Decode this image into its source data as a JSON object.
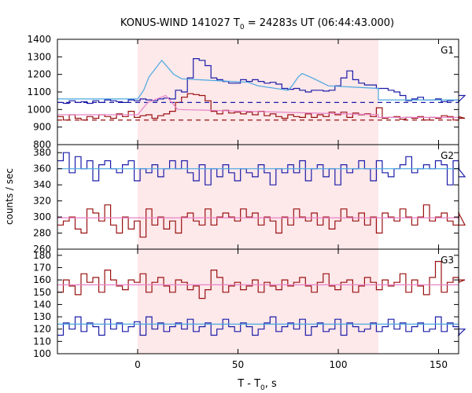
{
  "title_prefix": "KONUS-WIND 141027 T",
  "title_sub": "0",
  "title_suffix": " = 24283s UT (06:44:43.000)",
  "ylabel": "counts / sec",
  "xlabel_prefix": "T - T",
  "xlabel_sub": "0",
  "xlabel_suffix": ", s",
  "chart_data": {
    "type": "line",
    "x_range": [
      -40,
      160
    ],
    "x_ticks": [
      0,
      50,
      100,
      150
    ],
    "shaded_interval": [
      0,
      120
    ],
    "step_width": 2.944,
    "colors": {
      "series_a": "#1c1ca8",
      "series_b": "#9a1010",
      "fit_a": "#4aa8e0",
      "fit_b": "#e882c8",
      "shade": "#fde8ea"
    },
    "panels": [
      {
        "label": "G1",
        "ylim": [
          800,
          1400
        ],
        "y_ticks": [
          800,
          900,
          1000,
          1100,
          1200,
          1300,
          1400
        ],
        "series": [
          {
            "color": "#1c1ca8",
            "x0": -40,
            "values": [
              1040,
              1035,
              1050,
              1040,
              1045,
              1035,
              1050,
              1040,
              1055,
              1050,
              1045,
              1040,
              1055,
              1050,
              1060,
              1055,
              1050,
              1060,
              1065,
              1060,
              1110,
              1100,
              1180,
              1290,
              1280,
              1250,
              1180,
              1170,
              1160,
              1150,
              1150,
              1170,
              1160,
              1170,
              1160,
              1150,
              1155,
              1145,
              1120,
              1115,
              1120,
              1110,
              1100,
              1110,
              1110,
              1105,
              1110,
              1135,
              1180,
              1220,
              1170,
              1150,
              1140,
              1140,
              1120,
              1120,
              1110,
              1100,
              1080,
              1050,
              1060,
              1070,
              1055,
              1055,
              1060,
              1045,
              1050,
              1055,
              1045,
              1080
            ]
          },
          {
            "color": "#9a1010",
            "x0": -40,
            "values": [
              960,
              940,
              970,
              950,
              940,
              960,
              950,
              970,
              960,
              950,
              975,
              960,
              990,
              955,
              965,
              970,
              950,
              965,
              975,
              990,
              1040,
              1070,
              1090,
              1085,
              1080,
              1050,
              990,
              975,
              995,
              980,
              985,
              975,
              985,
              970,
              990,
              965,
              975,
              960,
              950,
              970,
              960,
              955,
              975,
              955,
              970,
              960,
              985,
              970,
              985,
              955,
              980,
              970,
              975,
              960,
              1010,
              950,
              955,
              960,
              945,
              955,
              950,
              960,
              940,
              955,
              950,
              965,
              960,
              940,
              960,
              950
            ]
          }
        ],
        "backgrounds": [
          {
            "color": "#1c1ca8",
            "style": "dashed",
            "value": 1040
          },
          {
            "color": "#9a1010",
            "style": "dashed",
            "value": 940
          }
        ],
        "fits": [
          {
            "color": "#4aa8e0",
            "segments": [
              [
                -40,
                1060,
                0,
                1060
              ],
              [
                0,
                1060,
                3,
                1110
              ],
              [
                3,
                1110,
                5.6,
                1185
              ],
              [
                5.6,
                1185,
                12,
                1280
              ],
              [
                12,
                1280,
                18,
                1200
              ],
              [
                18,
                1200,
                22,
                1175
              ],
              [
                22,
                1175,
                55,
                1155
              ],
              [
                55,
                1155,
                60,
                1135
              ],
              [
                60,
                1135,
                75,
                1110
              ],
              [
                75,
                1110,
                77,
                1135
              ],
              [
                77,
                1135,
                80,
                1185
              ],
              [
                80,
                1185,
                82,
                1205
              ],
              [
                82,
                1205,
                88,
                1175
              ],
              [
                88,
                1175,
                95,
                1135
              ],
              [
                95,
                1135,
                120,
                1120
              ],
              [
                120,
                1120,
                120,
                1055
              ],
              [
                120,
                1055,
                160,
                1055
              ]
            ]
          },
          {
            "color": "#e882c8",
            "segments": [
              [
                -40,
                970,
                0,
                970
              ],
              [
                0,
                970,
                5,
                1040
              ],
              [
                5,
                1040,
                14,
                1080
              ],
              [
                14,
                1080,
                20,
                1000
              ],
              [
                20,
                1000,
                120,
                970
              ],
              [
                120,
                970,
                120,
                955
              ],
              [
                120,
                955,
                160,
                955
              ]
            ]
          }
        ]
      },
      {
        "label": "G2",
        "ylim": [
          260,
          390
        ],
        "y_ticks": [
          260,
          280,
          300,
          320,
          340,
          360,
          380
        ],
        "series": [
          {
            "color": "#1c1ca8",
            "x0": -40,
            "values": [
              370,
              380,
              355,
              375,
              360,
              370,
              345,
              365,
              370,
              360,
              355,
              365,
              370,
              345,
              360,
              355,
              365,
              350,
              360,
              370,
              360,
              370,
              355,
              345,
              365,
              340,
              360,
              350,
              365,
              355,
              345,
              360,
              355,
              350,
              365,
              355,
              340,
              360,
              355,
              365,
              355,
              370,
              345,
              360,
              365,
              350,
              360,
              340,
              365,
              355,
              360,
              370,
              360,
              345,
              370,
              355,
              350,
              360,
              365,
              375,
              355,
              360,
              365,
              360,
              370,
              365,
              340,
              370,
              360,
              350
            ]
          },
          {
            "color": "#9a1010",
            "x0": -40,
            "values": [
              290,
              295,
              300,
              285,
              280,
              310,
              305,
              295,
              315,
              290,
              280,
              300,
              285,
              295,
              275,
              310,
              290,
              300,
              285,
              295,
              280,
              300,
              305,
              295,
              290,
              310,
              290,
              300,
              305,
              300,
              295,
              310,
              300,
              305,
              290,
              300,
              295,
              280,
              300,
              290,
              310,
              300,
              295,
              305,
              290,
              300,
              285,
              295,
              310,
              300,
              295,
              305,
              290,
              300,
              280,
              305,
              300,
              295,
              310,
              300,
              290,
              300,
              315,
              295,
              300,
              305,
              295,
              290,
              305,
              290
            ]
          }
        ],
        "backgrounds": [],
        "fits": [
          {
            "color": "#4aa8e0",
            "segments": [
              [
                -40,
                360,
                160,
                360
              ]
            ]
          },
          {
            "color": "#e882c8",
            "segments": [
              [
                -40,
                299,
                160,
                299
              ]
            ]
          }
        ]
      },
      {
        "label": "G3",
        "ylim": [
          100,
          185
        ],
        "y_ticks": [
          100,
          110,
          120,
          130,
          140,
          150,
          160,
          170,
          180
        ],
        "series": [
          {
            "color": "#1c1ca8",
            "x0": -40,
            "values": [
              115,
              125,
              120,
              130,
              118,
              125,
              122,
              115,
              128,
              120,
              125,
              118,
              122,
              126,
              115,
              130,
              120,
              125,
              118,
              122,
              125,
              120,
              128,
              118,
              122,
              125,
              115,
              120,
              128,
              122,
              118,
              125,
              122,
              115,
              120,
              125,
              130,
              118,
              122,
              125,
              120,
              128,
              115,
              122,
              125,
              118,
              120,
              128,
              115,
              125,
              122,
              118,
              120,
              125,
              118,
              122,
              128,
              120,
              125,
              118,
              122,
              125,
              118,
              120,
              130,
              118,
              125,
              122,
              115,
              120
            ]
          },
          {
            "color": "#9a1010",
            "x0": -40,
            "values": [
              150,
              160,
              155,
              148,
              165,
              158,
              162,
              150,
              168,
              160,
              155,
              152,
              160,
              158,
              165,
              150,
              158,
              162,
              155,
              150,
              160,
              158,
              152,
              155,
              145,
              152,
              168,
              162,
              150,
              155,
              158,
              152,
              155,
              160,
              150,
              158,
              155,
              152,
              160,
              155,
              158,
              162,
              155,
              150,
              158,
              165,
              155,
              152,
              158,
              160,
              150,
              155,
              162,
              158,
              152,
              160,
              155,
              158,
              165,
              150,
              160,
              155,
              148,
              162,
              175,
              150,
              158,
              162,
              158,
              160
            ]
          }
        ],
        "backgrounds": [],
        "fits": [
          {
            "color": "#4aa8e0",
            "segments": [
              [
                -40,
                124,
                160,
                124
              ]
            ]
          },
          {
            "color": "#e882c8",
            "segments": [
              [
                -40,
                156,
                160,
                156
              ]
            ]
          }
        ]
      }
    ]
  }
}
